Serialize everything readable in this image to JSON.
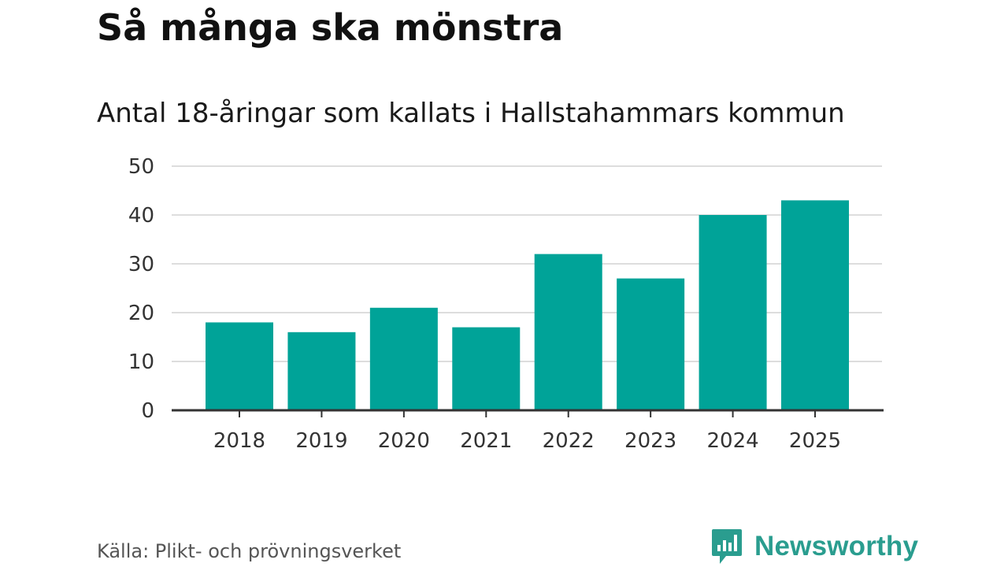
{
  "header": {
    "title": "Så många ska mönstra",
    "subtitle": "Antal 18-åringar som kallats i Hallstahammars kommun"
  },
  "footer": {
    "source": "Källa: Plikt- och prövningsverket",
    "brand": "Newsworthy",
    "brand_icon": "bar-chart-speech-bubble-icon"
  },
  "colors": {
    "bar": "#00A398",
    "grid": "#dddddd",
    "axis": "#333333",
    "brand": "#2a9d8f"
  },
  "chart_data": {
    "type": "bar",
    "title": "Så många ska mönstra",
    "subtitle": "Antal 18-åringar som kallats i Hallstahammars kommun",
    "xlabel": "",
    "ylabel": "",
    "categories": [
      "2018",
      "2019",
      "2020",
      "2021",
      "2022",
      "2023",
      "2024",
      "2025"
    ],
    "values": [
      18,
      16,
      21,
      17,
      32,
      27,
      40,
      43
    ],
    "ylim": [
      0,
      50
    ],
    "yticks": [
      0,
      10,
      20,
      30,
      40,
      50
    ],
    "grid": true,
    "legend": "none"
  }
}
